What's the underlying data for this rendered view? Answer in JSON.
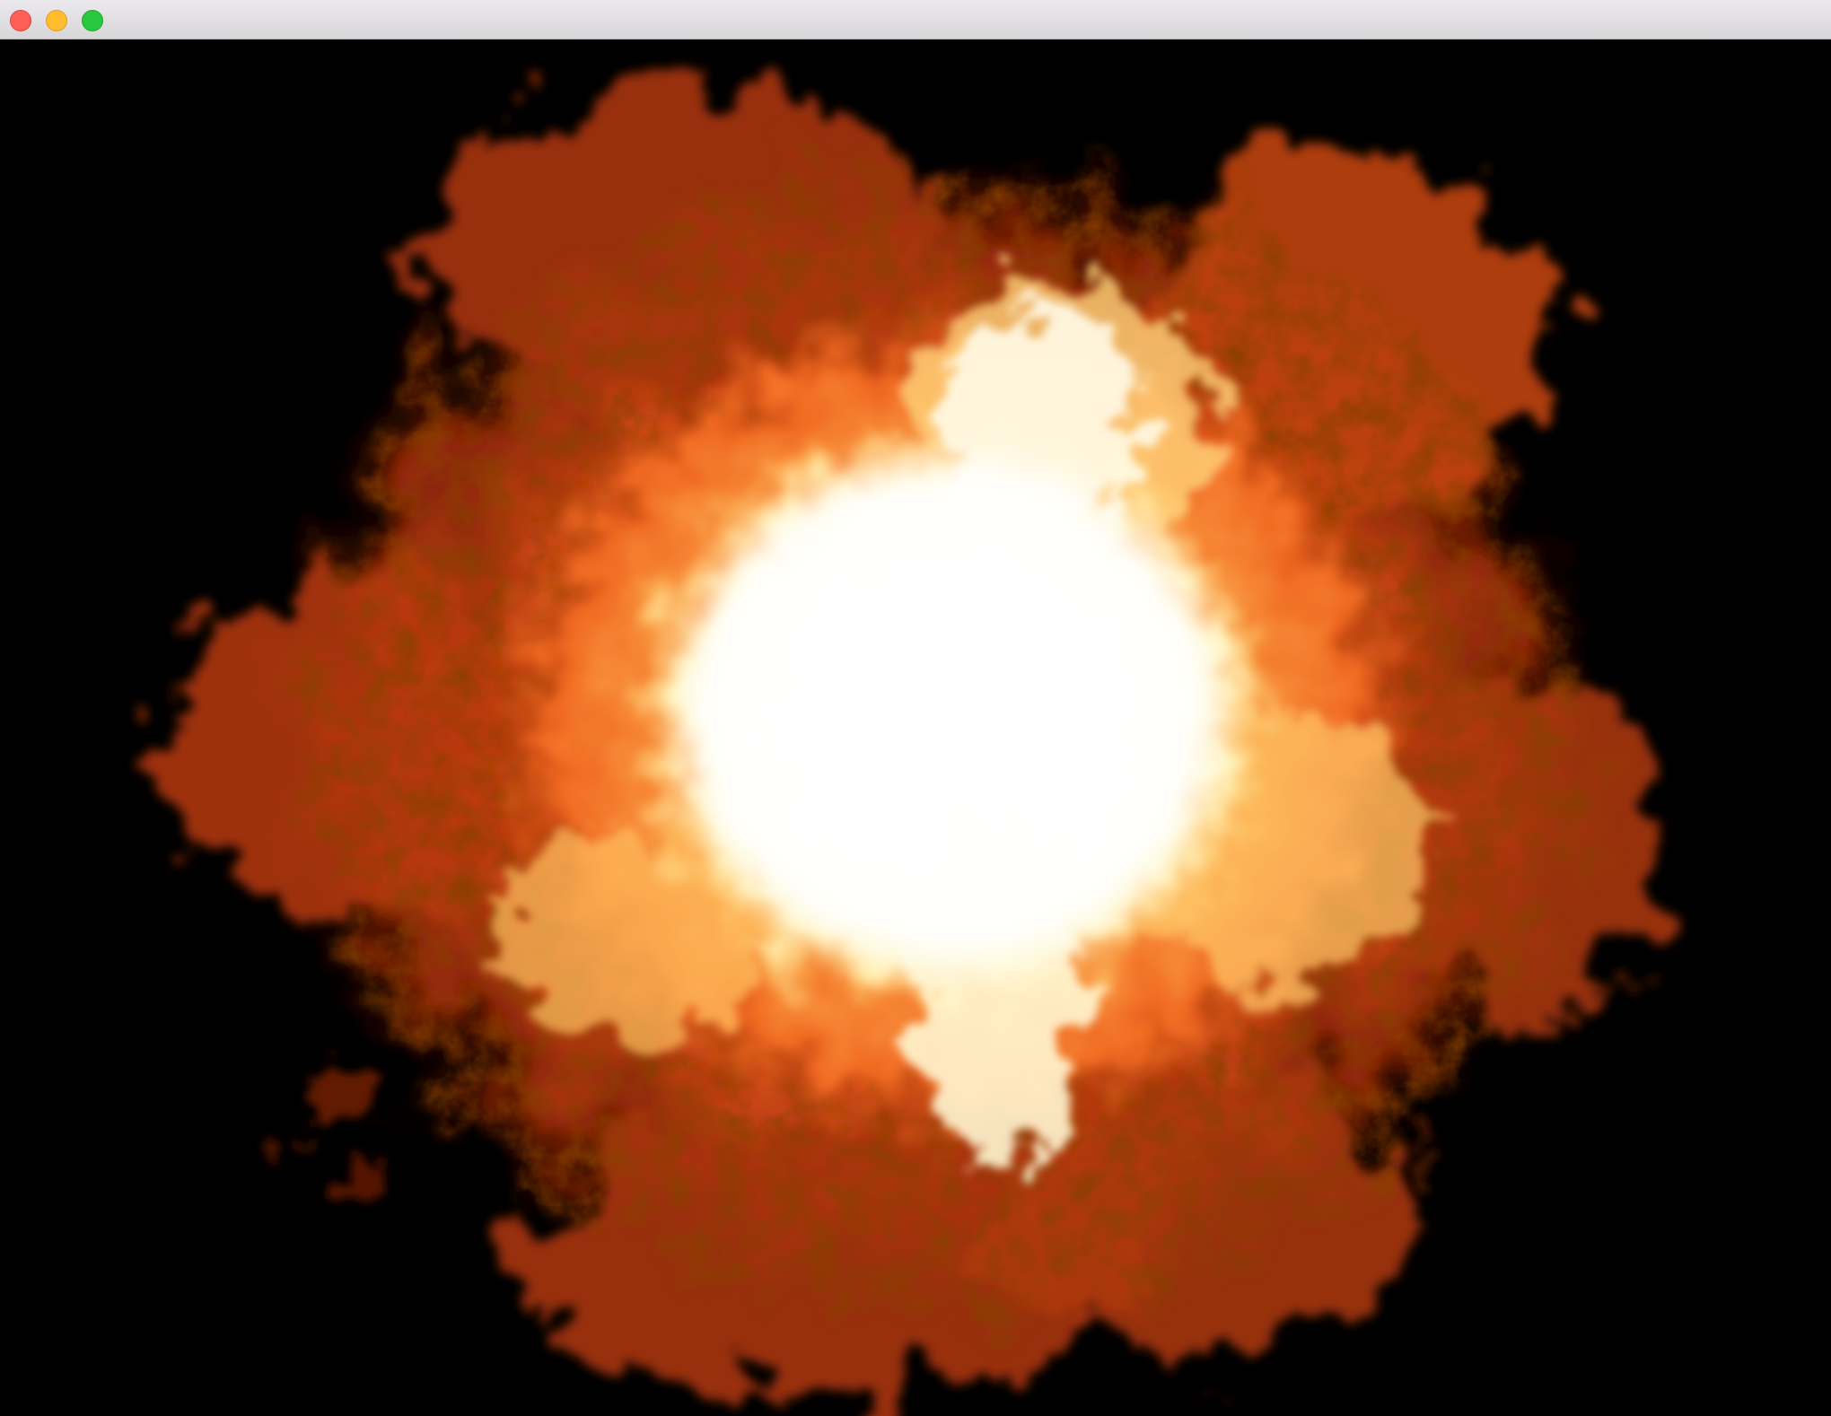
{
  "window": {
    "title": "",
    "controls": {
      "close_color": "#fe5f57",
      "minimize_color": "#febc2e",
      "zoom_color": "#28c840"
    }
  },
  "scene": {
    "background_color": "#000000",
    "effect": "explosion-fireball",
    "colors": {
      "core": "#ffffff",
      "inner": "#fff2b0",
      "mid": "#ff9a3c",
      "outer": "#e0521a",
      "edge": "#6e1a04"
    }
  }
}
